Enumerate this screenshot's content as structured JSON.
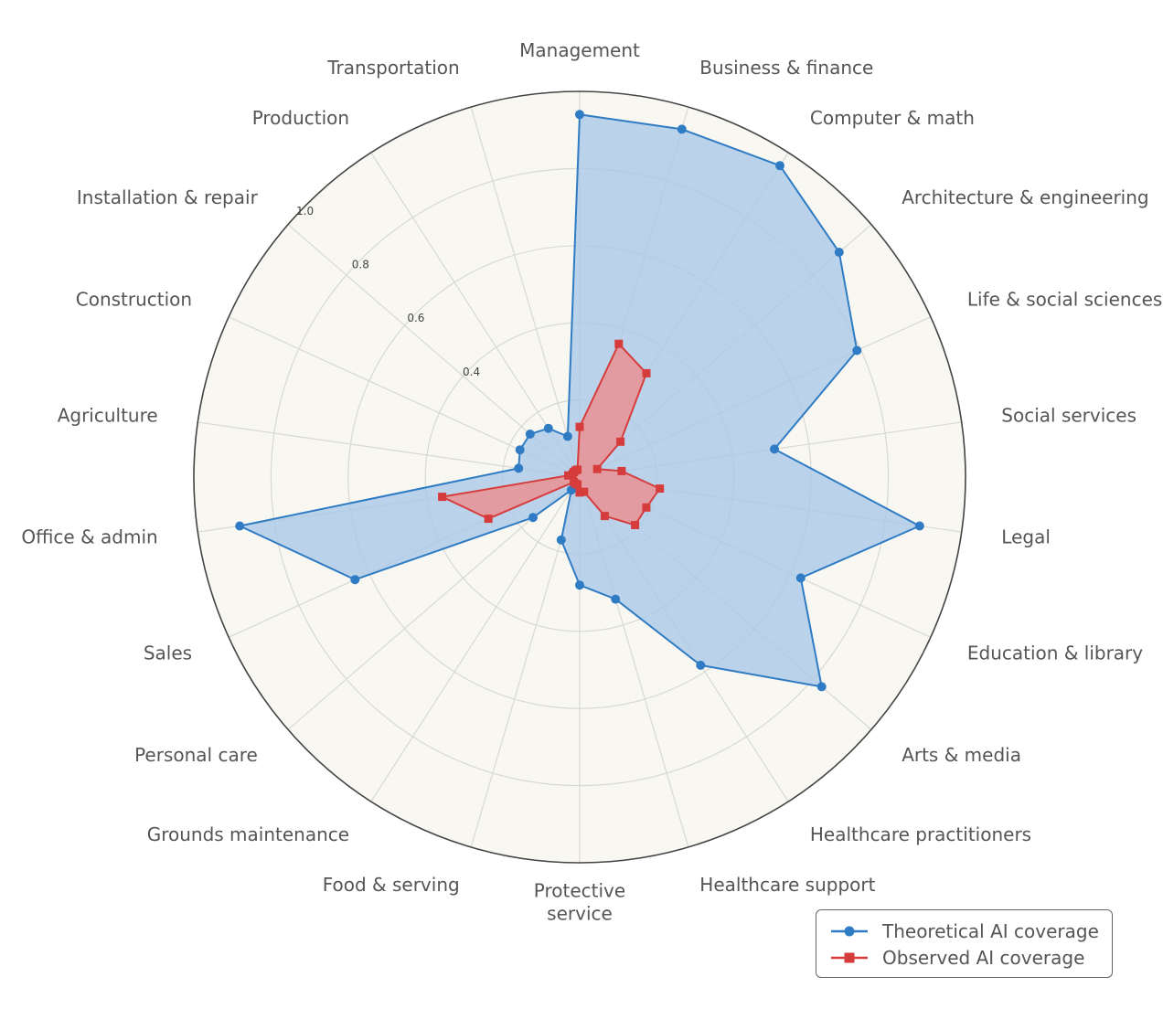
{
  "chart_data": {
    "type": "radar",
    "categories": [
      "Management",
      "Business & finance",
      "Computer & math",
      "Architecture & engineering",
      "Life & social sciences",
      "Social services",
      "Legal",
      "Education & library",
      "Arts & media",
      "Healthcare practitioners",
      "Healthcare support",
      "Protective\nservice",
      "Food & serving",
      "Grounds maintenance",
      "Personal care",
      "Sales",
      "Office & admin",
      "Agriculture",
      "Construction",
      "Installation & repair",
      "Production",
      "Transportation"
    ],
    "series": [
      {
        "name": "Theoretical AI coverage",
        "color": "#2f7bc4",
        "fill": "#aac9e8",
        "marker": "circle",
        "values": [
          0.94,
          0.94,
          0.96,
          0.89,
          0.79,
          0.51,
          0.89,
          0.63,
          0.83,
          0.58,
          0.33,
          0.28,
          0.17,
          0.04,
          0.16,
          0.64,
          0.89,
          0.16,
          0.17,
          0.17,
          0.15,
          0.11
        ]
      },
      {
        "name": "Observed AI coverage",
        "color": "#d63c3c",
        "fill": "#ec8f8f",
        "marker": "square",
        "values": [
          0.13,
          0.36,
          0.32,
          0.14,
          0.05,
          0.11,
          0.21,
          0.19,
          0.19,
          0.12,
          0.04,
          0.04,
          0.02,
          0.02,
          0.02,
          0.26,
          0.36,
          0.03,
          0.02,
          0.02,
          0.02,
          0.02
        ]
      }
    ],
    "r_ticks": [
      {
        "value": 0.4,
        "label": "0.4"
      },
      {
        "value": 0.6,
        "label": "0.6"
      },
      {
        "value": 0.8,
        "label": "0.8"
      },
      {
        "value": 1.0,
        "label": "1.0"
      }
    ],
    "r_grid": [
      0.2,
      0.4,
      0.6,
      0.8,
      1.0
    ],
    "r_range": [
      0,
      1.0
    ],
    "grid": true,
    "legend_position": "bottom-right",
    "background_color": "#f8f7f1",
    "grid_color": "#d9d9d4",
    "outline_color": "#444444"
  },
  "legend": {
    "items": [
      {
        "label": "Theoretical AI coverage"
      },
      {
        "label": "Observed AI coverage"
      }
    ]
  }
}
